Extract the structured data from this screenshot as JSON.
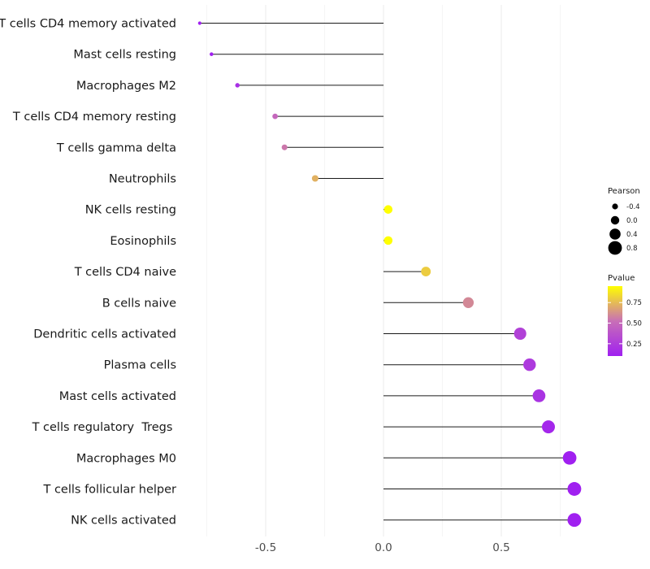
{
  "chart_data": {
    "type": "lollipop",
    "title": "",
    "xlabel": "",
    "ylabel": "",
    "xlim": [
      -0.85,
      0.92
    ],
    "x_ticks": [
      -0.5,
      0.0,
      0.5
    ],
    "x_tick_labels": [
      "-0.5",
      "0.0",
      "0.5"
    ],
    "grid": true,
    "colors": {
      "low": "#a020f0",
      "mid": "#c86fb6",
      "high": "#ffff00",
      "stem": "#1a1a1a"
    },
    "points": [
      {
        "label": "T cells CD4 memory activated",
        "pearson": -0.78,
        "pvalue": 0.03
      },
      {
        "label": "Mast cells resting",
        "pearson": -0.73,
        "pvalue": 0.05
      },
      {
        "label": "Macrophages M2",
        "pearson": -0.62,
        "pvalue": 0.18
      },
      {
        "label": "T cells CD4 memory resting",
        "pearson": -0.46,
        "pvalue": 0.48
      },
      {
        "label": "T cells gamma delta",
        "pearson": -0.42,
        "pvalue": 0.55
      },
      {
        "label": "Neutrophils",
        "pearson": -0.29,
        "pvalue": 0.72
      },
      {
        "label": "NK cells resting",
        "pearson": 0.02,
        "pvalue": 0.98
      },
      {
        "label": "Eosinophils",
        "pearson": 0.02,
        "pvalue": 0.97
      },
      {
        "label": "T cells CD4 naive",
        "pearson": 0.18,
        "pvalue": 0.8
      },
      {
        "label": "B cells naive",
        "pearson": 0.36,
        "pvalue": 0.6
      },
      {
        "label": "Dendritic cells activated",
        "pearson": 0.58,
        "pvalue": 0.28
      },
      {
        "label": "Plasma cells",
        "pearson": 0.62,
        "pvalue": 0.24
      },
      {
        "label": "Mast cells activated",
        "pearson": 0.66,
        "pvalue": 0.2
      },
      {
        "label": "T cells regulatory  Tregs ",
        "pearson": 0.7,
        "pvalue": 0.14
      },
      {
        "label": "Macrophages M0",
        "pearson": 0.79,
        "pvalue": 0.05
      },
      {
        "label": "T cells follicular helper",
        "pearson": 0.81,
        "pvalue": 0.03
      },
      {
        "label": "NK cells activated",
        "pearson": 0.81,
        "pvalue": 0.02
      }
    ],
    "legend_size": {
      "title": "Pearson",
      "entries": [
        {
          "label": "-0.4",
          "value": -0.4
        },
        {
          "label": "0.0",
          "value": 0.0
        },
        {
          "label": "0.4",
          "value": 0.4
        },
        {
          "label": "0.8",
          "value": 0.8
        }
      ]
    },
    "legend_color": {
      "title": "Pvalue",
      "range": [
        0.1,
        0.95
      ],
      "ticks": [
        {
          "label": "0.75",
          "value": 0.75
        },
        {
          "label": "0.50",
          "value": 0.5
        },
        {
          "label": "0.25",
          "value": 0.25
        }
      ]
    }
  }
}
